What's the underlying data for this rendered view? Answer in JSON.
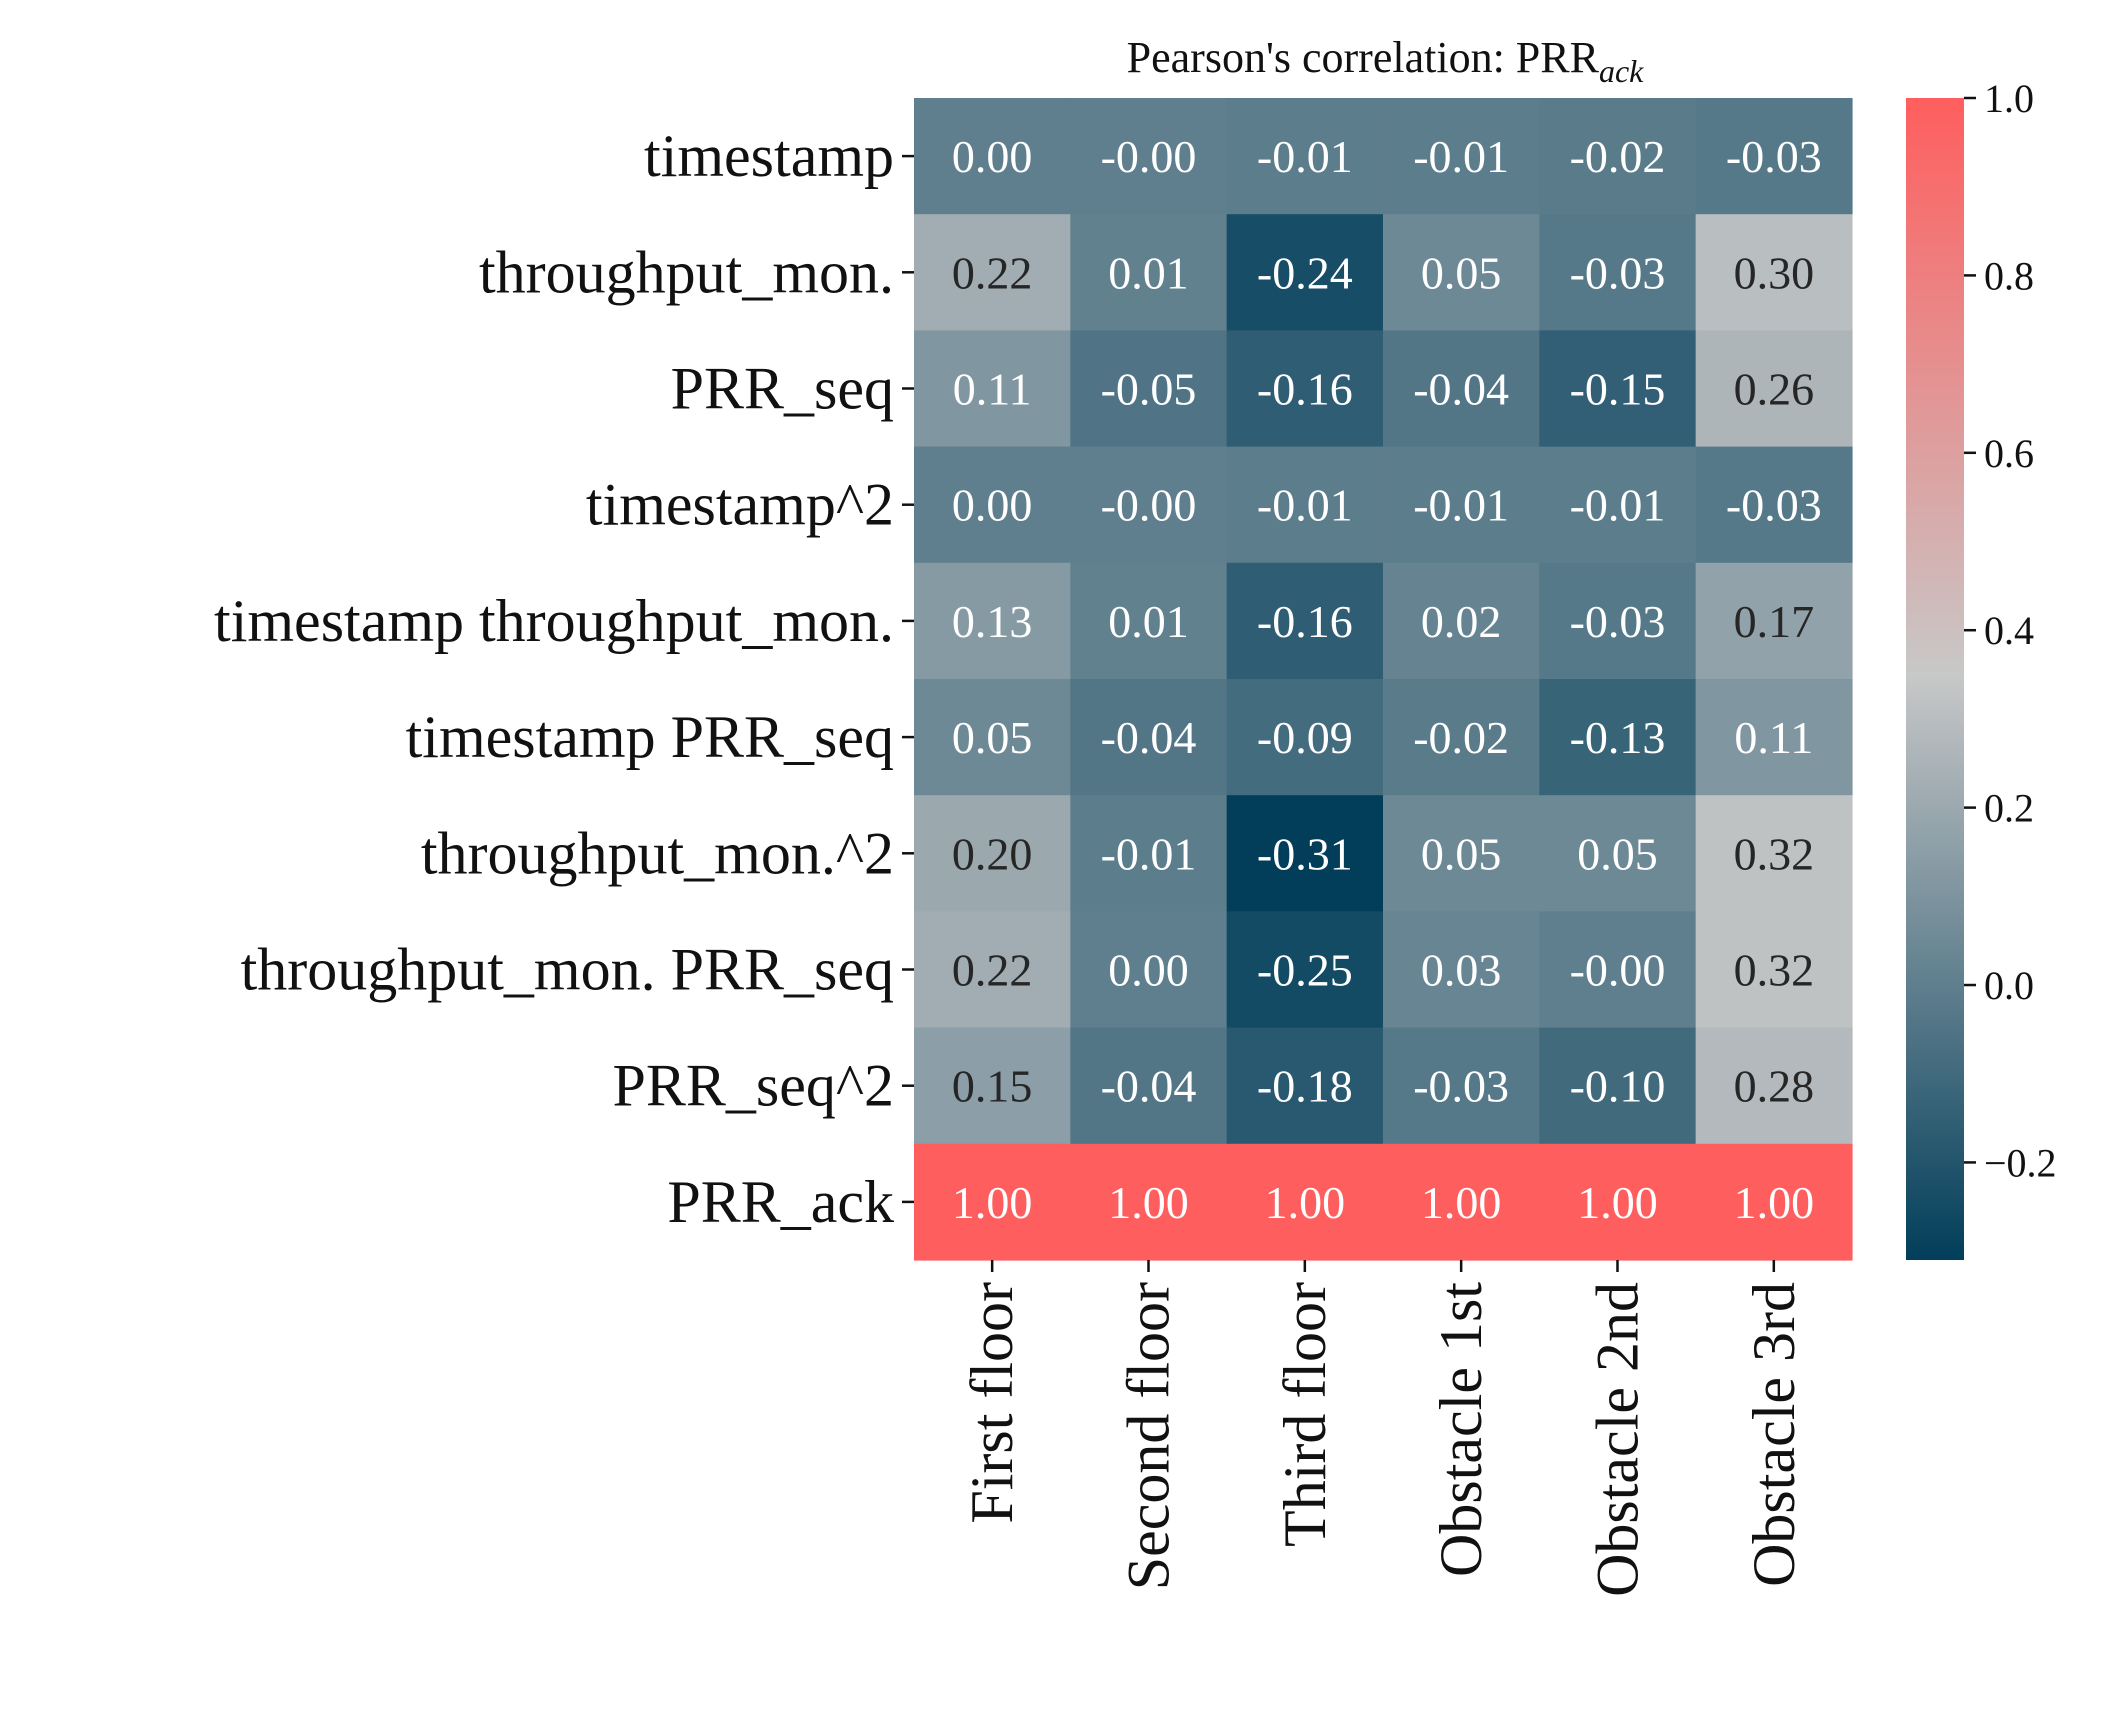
{
  "chart_data": {
    "type": "heatmap",
    "title": "Pearson's correlation: PRR",
    "title_subscript": "ack",
    "rows": [
      "timestamp",
      "throughput_mon.",
      "PRR_seq",
      "timestamp^2",
      "timestamp throughput_mon.",
      "timestamp PRR_seq",
      "throughput_mon.^2",
      "throughput_mon. PRR_seq",
      "PRR_seq^2",
      "PRR_ack"
    ],
    "columns": [
      "First floor",
      "Second floor",
      "Third floor",
      "Obstacle 1st",
      "Obstacle 2nd",
      "Obstacle 3rd"
    ],
    "values": [
      [
        0.0,
        -0.0,
        -0.01,
        -0.01,
        -0.02,
        -0.03
      ],
      [
        0.22,
        0.01,
        -0.24,
        0.05,
        -0.03,
        0.3
      ],
      [
        0.11,
        -0.05,
        -0.16,
        -0.04,
        -0.15,
        0.26
      ],
      [
        0.0,
        -0.0,
        -0.01,
        -0.01,
        -0.01,
        -0.03
      ],
      [
        0.13,
        0.01,
        -0.16,
        0.02,
        -0.03,
        0.17
      ],
      [
        0.05,
        -0.04,
        -0.09,
        -0.02,
        -0.13,
        0.11
      ],
      [
        0.2,
        -0.01,
        -0.31,
        0.05,
        0.05,
        0.32
      ],
      [
        0.22,
        0.0,
        -0.25,
        0.03,
        -0.0,
        0.32
      ],
      [
        0.15,
        -0.04,
        -0.18,
        -0.03,
        -0.1,
        0.28
      ],
      [
        1.0,
        1.0,
        1.0,
        1.0,
        1.0,
        1.0
      ]
    ],
    "cell_labels": [
      [
        "0.00",
        "-0.00",
        "-0.01",
        "-0.01",
        "-0.02",
        "-0.03"
      ],
      [
        "0.22",
        "0.01",
        "-0.24",
        "0.05",
        "-0.03",
        "0.30"
      ],
      [
        "0.11",
        "-0.05",
        "-0.16",
        "-0.04",
        "-0.15",
        "0.26"
      ],
      [
        "0.00",
        "-0.00",
        "-0.01",
        "-0.01",
        "-0.01",
        "-0.03"
      ],
      [
        "0.13",
        "0.01",
        "-0.16",
        "0.02",
        "-0.03",
        "0.17"
      ],
      [
        "0.05",
        "-0.04",
        "-0.09",
        "-0.02",
        "-0.13",
        "0.11"
      ],
      [
        "0.20",
        "-0.01",
        "-0.31",
        "0.05",
        "0.05",
        "0.32"
      ],
      [
        "0.22",
        "0.00",
        "-0.25",
        "0.03",
        "-0.00",
        "0.32"
      ],
      [
        "0.15",
        "-0.04",
        "-0.18",
        "-0.03",
        "-0.10",
        "0.28"
      ],
      [
        "1.00",
        "1.00",
        "1.00",
        "1.00",
        "1.00",
        "1.00"
      ]
    ],
    "colorbar": {
      "vmin": -0.31,
      "vmax": 1.0,
      "ticks": [
        -0.2,
        0.0,
        0.2,
        0.4,
        0.6,
        0.8,
        1.0
      ],
      "tick_labels": [
        "−0.2",
        "0.0",
        "0.2",
        "0.4",
        "0.6",
        "0.8",
        "1.0"
      ],
      "colormap_stops": [
        {
          "value": -0.31,
          "color": "#023e5a"
        },
        {
          "value": 0.35,
          "color": "#c8c8c8"
        },
        {
          "value": 1.0,
          "color": "#ff5e5e"
        }
      ]
    },
    "label_text_colors": {
      "light": "#ffffff",
      "dark": "#262626"
    }
  }
}
